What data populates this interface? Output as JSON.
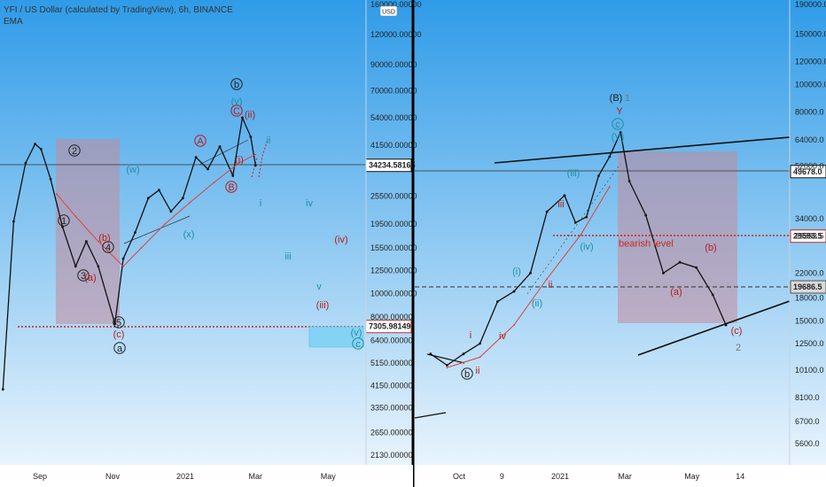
{
  "header": {
    "title": "YFI / US Dollar (calculated by TradingView), 6h, BINANCE",
    "indicator": "EMA",
    "currency_badge": "USD"
  },
  "colors": {
    "bg_top": "#2f9be8",
    "bg_bottom": "#f2f8fe",
    "candle": "#111111",
    "ema": "#d9443a",
    "box": "#c48a9a",
    "target_box": "#7fd3f5",
    "level_dotted": "#c62828",
    "wave_teal": "#1f8fa3",
    "wave_red": "#b71c1c",
    "wave_black": "#222222",
    "wave_gray": "#777777",
    "divider": "#000000"
  },
  "chart_data": [
    {
      "type": "line",
      "panel": "left",
      "title": "YFI / US Dollar (calculated by TradingView), 6h, BINANCE",
      "scale": "log",
      "y_ticks": [
        "160000.00000",
        "120000.00000",
        "90000.00000",
        "70000.00000",
        "54000.00000",
        "41500.00000",
        "25500.00000",
        "19500.00000",
        "15500.00000",
        "12500.00000",
        "10000.00000",
        "8000.00000",
        "6400.00000",
        "5150.00000",
        "4150.00000",
        "3350.00000",
        "2650.00000",
        "2130.00000"
      ],
      "x_ticks": [
        "Sep",
        "Nov",
        "2021",
        "Mar",
        "May"
      ],
      "price_labels": [
        {
          "label": "34234.58165",
          "value": 34234.58
        },
        {
          "label": "7305.98149",
          "value": 7305.98
        }
      ],
      "series": [
        {
          "name": "YFI",
          "kind": "price",
          "x": [
            "2020-08-01",
            "2020-08-10",
            "2020-08-20",
            "2020-08-28",
            "2020-09-02",
            "2020-09-10",
            "2020-09-20",
            "2020-10-01",
            "2020-10-10",
            "2020-10-20",
            "2020-11-03",
            "2020-11-10",
            "2020-11-20",
            "2020-12-01",
            "2020-12-10",
            "2020-12-20",
            "2020-12-30",
            "2021-01-10",
            "2021-01-20",
            "2021-01-30",
            "2021-02-10",
            "2021-02-18",
            "2021-02-25",
            "2021-03-01"
          ],
          "values": [
            4000,
            20000,
            35000,
            42000,
            40000,
            30000,
            19000,
            13000,
            16500,
            13000,
            7500,
            14000,
            18000,
            25000,
            27000,
            22000,
            25000,
            37000,
            33000,
            41000,
            31000,
            54000,
            45000,
            34234
          ]
        },
        {
          "name": "EMA",
          "kind": "ema",
          "x": [
            "2020-09-15",
            "2020-10-01",
            "2020-10-20",
            "2020-11-10",
            "2020-11-25",
            "2020-12-15",
            "2021-01-05",
            "2021-01-25",
            "2021-02-15",
            "2021-03-01"
          ],
          "values": [
            26000,
            21000,
            16500,
            13000,
            15500,
            19500,
            24000,
            29000,
            35000,
            38000
          ]
        }
      ],
      "annotations": [
        "1",
        "2",
        "3",
        "4",
        "5",
        "(a)",
        "(b)",
        "(c)",
        "a",
        "(w)",
        "(x)",
        "(v)",
        "(ii)",
        "(i)",
        "A",
        "B",
        "C",
        "b",
        "i",
        "ii",
        "iii",
        "iv",
        "v",
        "(iii)",
        "(iv)",
        "(v)",
        "c"
      ]
    },
    {
      "type": "line",
      "panel": "right",
      "scale": "log",
      "y_ticks": [
        "190000.0",
        "150000.0",
        "120000.0",
        "100000.0",
        "80000.0",
        "64000.0",
        "52000.0",
        "34000.0",
        "29593.5",
        "22000.0",
        "18000.0",
        "15000.0",
        "12500.0",
        "10100.0",
        "8100.0",
        "6700.0",
        "5600.0"
      ],
      "x_ticks": [
        "Oct",
        "9",
        "2021",
        "Mar",
        "May",
        "14"
      ],
      "price_labels": [
        {
          "label": "49678.0",
          "value": 49678.0
        },
        {
          "label": "29593.5",
          "value": 29593.5
        },
        {
          "label": "19686.5",
          "value": 19686.5
        }
      ],
      "series": [
        {
          "name": "YFI",
          "kind": "price",
          "x": [
            "2020-09-05",
            "2020-09-20",
            "2020-10-05",
            "2020-10-20",
            "2020-11-05",
            "2020-11-20",
            "2020-12-05",
            "2020-12-20",
            "2021-01-05",
            "2021-01-15",
            "2021-01-25",
            "2021-02-05",
            "2021-02-15",
            "2021-02-25",
            "2021-03-05",
            "2021-03-20",
            "2021-04-05",
            "2021-04-20",
            "2021-05-05",
            "2021-05-20",
            "2021-06-01"
          ],
          "values": [
            11500,
            10500,
            11500,
            12500,
            17500,
            19000,
            22000,
            36000,
            41000,
            33000,
            34500,
            48000,
            56000,
            68000,
            46000,
            35000,
            22000,
            24000,
            23000,
            18500,
            14500
          ]
        },
        {
          "name": "EMA",
          "kind": "ema",
          "x": [
            "2020-09-20",
            "2020-10-20",
            "2020-11-20",
            "2020-12-20",
            "2021-01-20",
            "2021-02-15"
          ],
          "values": [
            10300,
            11200,
            14500,
            21000,
            30000,
            44000
          ]
        }
      ],
      "levels": [
        {
          "label": "bearish level",
          "value": 29593.5
        }
      ],
      "annotations": [
        "(B)",
        "1",
        "Y",
        "c",
        "(V)",
        "(iii)",
        "iii",
        "ii",
        "(i)",
        "i",
        "iv",
        "(ii)",
        "(iv)",
        "b",
        "ii",
        "(a)",
        "(b)",
        "(c)",
        "2"
      ]
    }
  ]
}
